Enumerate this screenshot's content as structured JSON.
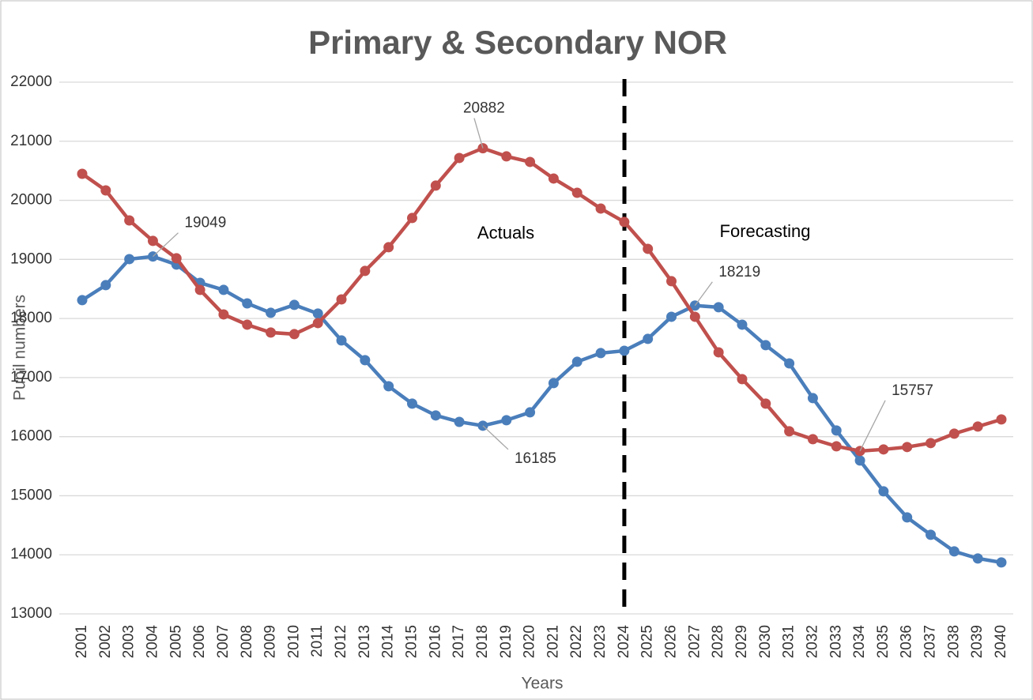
{
  "chart_data": {
    "type": "line",
    "title": "Primary & Secondary NOR",
    "x_label": "Years",
    "y_label": "Pupil numbers",
    "categories": [
      "2001",
      "2002",
      "2003",
      "2004",
      "2005",
      "2006",
      "2007",
      "2008",
      "2009",
      "2010",
      "2011",
      "2012",
      "2013",
      "2014",
      "2015",
      "2016",
      "2017",
      "2018",
      "2019",
      "2020",
      "2021",
      "2022",
      "2023",
      "2024",
      "2025",
      "2026",
      "2027",
      "2028",
      "2029",
      "2030",
      "2031",
      "2032",
      "2033",
      "2034",
      "2035",
      "2036",
      "2037",
      "2038",
      "2039",
      "2040"
    ],
    "series": [
      {
        "color": "#4a7ebb",
        "values": [
          18310,
          18564,
          19005,
          19049,
          18912,
          18604,
          18484,
          18256,
          18096,
          18230,
          18083,
          17628,
          17294,
          16853,
          16559,
          16359,
          16250,
          16185,
          16278,
          16411,
          16906,
          17267,
          17414,
          17454,
          17655,
          18029,
          18219,
          18190,
          17895,
          17548,
          17240,
          16652,
          16104,
          15596,
          15074,
          14633,
          14339,
          14058,
          13938,
          13871
        ],
        "value_labels": [
          null,
          null,
          null,
          "19049",
          null,
          null,
          null,
          null,
          null,
          null,
          null,
          null,
          null,
          null,
          null,
          null,
          null,
          "16185",
          null,
          null,
          null,
          null,
          null,
          null,
          null,
          null,
          "18219",
          null,
          null,
          null,
          null,
          null,
          null,
          null,
          null,
          null,
          null,
          null,
          null,
          null
        ]
      },
      {
        "color": "#c0504d",
        "values": [
          20449,
          20168,
          19660,
          19313,
          19019,
          18484,
          18069,
          17895,
          17762,
          17735,
          17922,
          18323,
          18805,
          19206,
          19701,
          20249,
          20717,
          20882,
          20744,
          20650,
          20369,
          20128,
          19861,
          19634,
          19179,
          18631,
          18029,
          17427,
          16973,
          16559,
          16091,
          15957,
          15837,
          15757,
          15784,
          15824,
          15891,
          16051,
          16171,
          16291
        ],
        "value_labels": [
          null,
          null,
          null,
          null,
          null,
          null,
          null,
          null,
          null,
          null,
          null,
          null,
          null,
          null,
          null,
          null,
          null,
          "20882",
          null,
          null,
          null,
          null,
          null,
          null,
          null,
          null,
          null,
          null,
          null,
          null,
          null,
          null,
          null,
          "15757",
          null,
          null,
          null,
          null,
          null,
          null
        ]
      }
    ],
    "ylim": [
      13000,
      22000
    ],
    "yticks": [
      13000,
      14000,
      15000,
      16000,
      17000,
      18000,
      19000,
      20000,
      21000,
      22000
    ],
    "grid": true,
    "divider": "2024",
    "annotations": [
      "Actuals",
      "Forecasting"
    ]
  }
}
